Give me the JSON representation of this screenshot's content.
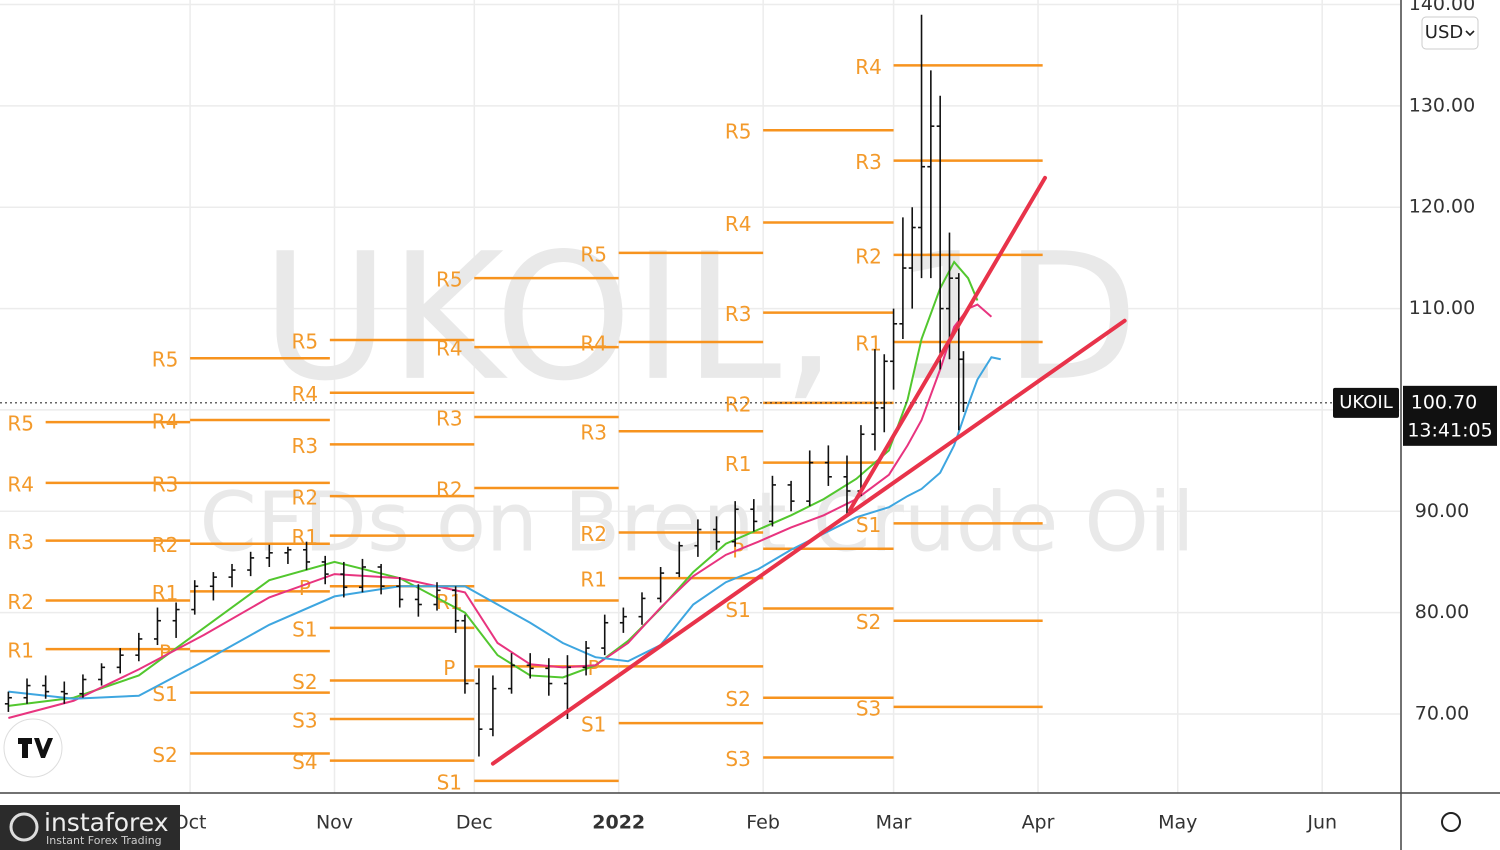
{
  "chart_data": {
    "type": "ohlc",
    "symbol": "UKOIL",
    "watermark_title": "UKOIL, 1D",
    "watermark_subtitle": "CFDs on Brent Crude Oil",
    "currency": "USD",
    "last_price": {
      "value": 100.7,
      "label": "100.70"
    },
    "countdown": "13:41:05",
    "xlim": [
      -40.8,
      259.7
    ],
    "ylim": [
      62.2,
      140.45
    ],
    "xticks": [
      {
        "value": 0,
        "label": "Oct"
      },
      {
        "value": 31,
        "label": "Nov"
      },
      {
        "value": 61,
        "label": "Dec"
      },
      {
        "value": 92,
        "label": "2022"
      },
      {
        "value": 123,
        "label": "Feb"
      },
      {
        "value": 151,
        "label": "Mar"
      },
      {
        "value": 182,
        "label": "Apr"
      },
      {
        "value": 212,
        "label": "May"
      },
      {
        "value": 243,
        "label": "Jun"
      }
    ],
    "yticks": [
      {
        "value": 70,
        "label": "70.00"
      },
      {
        "value": 80,
        "label": "80.00"
      },
      {
        "value": 90,
        "label": "90.00"
      },
      {
        "value": 100,
        "label": "100.00"
      },
      {
        "value": 110,
        "label": "110.00"
      },
      {
        "value": 120,
        "label": "120.00"
      },
      {
        "value": 130,
        "label": "130.00"
      },
      {
        "value": 140,
        "label": "140.00"
      }
    ],
    "grid": true,
    "bar_color": "#111111",
    "x": [
      -39,
      -35,
      -31,
      -27,
      -23,
      -19,
      -15,
      -11,
      -7,
      -3,
      1,
      5,
      9,
      13,
      17,
      21,
      25,
      29,
      33,
      37,
      41,
      45,
      49,
      53,
      57,
      59,
      62,
      65,
      69,
      73,
      77,
      81,
      85,
      89,
      93,
      97,
      101,
      105,
      109,
      113,
      117,
      121,
      125,
      129,
      133,
      137,
      141,
      144,
      147,
      149,
      151,
      153,
      155,
      157,
      159,
      161,
      163,
      165,
      166
    ],
    "open": [
      71.0,
      71.6,
      72.8,
      72.2,
      72.0,
      73.4,
      74.6,
      75.8,
      77.4,
      79.2,
      80.3,
      82.6,
      83.5,
      84.2,
      85.4,
      85.9,
      86.2,
      85.0,
      83.8,
      82.5,
      84.5,
      82.6,
      81.3,
      80.8,
      82.2,
      79.2,
      73.0,
      68.5,
      72.5,
      74.8,
      74.5,
      73.0,
      74.6,
      76.5,
      79.0,
      79.6,
      81.4,
      83.9,
      86.6,
      88.2,
      87.0,
      90.2,
      89.0,
      92.6,
      91.0,
      94.8,
      93.4,
      92.0,
      97.6,
      100.2,
      104.8,
      108.5,
      114.0,
      118.0,
      124.0,
      128.0,
      110.0,
      113.0,
      105.0
    ],
    "high": [
      72.2,
      73.5,
      73.8,
      73.2,
      73.9,
      75.0,
      76.5,
      78.0,
      80.5,
      81.0,
      83.2,
      84.0,
      84.8,
      86.0,
      86.7,
      86.5,
      87.0,
      85.6,
      85.0,
      85.3,
      84.8,
      83.5,
      82.8,
      83.0,
      82.6,
      79.8,
      74.5,
      73.8,
      76.0,
      76.0,
      75.5,
      75.8,
      77.2,
      79.8,
      80.5,
      82.0,
      84.5,
      87.0,
      89.2,
      89.5,
      91.0,
      91.2,
      93.5,
      93.0,
      96.0,
      96.5,
      95.5,
      98.5,
      106.0,
      105.5,
      110.0,
      119.0,
      120.0,
      139.0,
      133.5,
      131.0,
      117.5,
      113.5,
      105.8
    ],
    "low": [
      70.2,
      71.0,
      71.5,
      71.0,
      71.6,
      72.8,
      74.0,
      75.2,
      76.8,
      77.5,
      79.8,
      81.2,
      82.5,
      83.6,
      84.5,
      84.8,
      84.2,
      82.8,
      81.5,
      82.0,
      81.8,
      80.5,
      79.6,
      80.2,
      78.0,
      72.0,
      65.8,
      67.8,
      72.0,
      73.5,
      71.8,
      69.5,
      73.8,
      75.8,
      78.0,
      78.8,
      81.0,
      83.5,
      85.5,
      86.2,
      86.5,
      88.0,
      88.5,
      90.0,
      90.5,
      92.5,
      89.5,
      91.5,
      96.0,
      97.8,
      102.0,
      107.0,
      110.0,
      113.0,
      113.0,
      104.0,
      105.0,
      98.0,
      99.8
    ],
    "close": [
      71.6,
      72.8,
      72.2,
      72.0,
      73.4,
      74.6,
      75.8,
      77.4,
      79.2,
      80.3,
      82.6,
      83.5,
      84.2,
      85.4,
      85.9,
      86.2,
      85.0,
      83.8,
      82.5,
      84.5,
      82.6,
      81.3,
      80.8,
      82.2,
      79.2,
      73.0,
      68.5,
      72.5,
      74.8,
      74.5,
      73.0,
      74.6,
      76.5,
      79.0,
      79.6,
      81.4,
      83.9,
      86.6,
      88.2,
      87.0,
      90.2,
      89.0,
      92.6,
      91.0,
      94.8,
      93.4,
      92.0,
      97.6,
      100.2,
      104.8,
      108.5,
      114.0,
      118.0,
      124.0,
      128.0,
      110.0,
      113.0,
      105.0,
      100.7
    ],
    "moving_averages": {
      "x": [
        -39,
        -25,
        -11,
        3,
        17,
        31,
        45,
        59,
        66,
        73,
        80,
        87,
        94,
        101,
        108,
        115,
        122,
        129,
        136,
        143,
        150,
        154,
        157,
        161,
        164,
        167,
        169,
        172,
        174
      ],
      "series": [
        {
          "color": "#52c72e",
          "values": [
            70.8,
            71.6,
            73.8,
            78.5,
            83.2,
            85.0,
            83.4,
            80.0,
            75.8,
            73.8,
            73.6,
            74.8,
            77.2,
            80.4,
            84.0,
            86.8,
            88.2,
            89.6,
            91.2,
            93.2,
            96.0,
            101.0,
            107.0,
            112.0,
            114.6,
            113.0,
            110.8,
            null,
            null
          ]
        },
        {
          "color": "#e8347f",
          "values": [
            69.6,
            71.3,
            74.4,
            77.8,
            81.5,
            83.8,
            83.4,
            82.0,
            77.0,
            74.9,
            74.6,
            74.8,
            77.0,
            80.5,
            83.6,
            85.7,
            87.0,
            88.4,
            89.6,
            91.2,
            93.6,
            96.5,
            99.0,
            104.0,
            108.2,
            110.0,
            110.4,
            109.2,
            null
          ]
        },
        {
          "color": "#3ea6e0",
          "values": [
            72.2,
            71.5,
            71.8,
            75.2,
            78.8,
            81.6,
            82.6,
            82.6,
            80.8,
            79.0,
            77.0,
            75.6,
            75.2,
            76.8,
            80.8,
            83.0,
            84.3,
            86.2,
            87.8,
            89.4,
            90.4,
            91.5,
            92.2,
            93.8,
            96.5,
            100.5,
            103.0,
            105.2,
            105.0
          ]
        }
      ]
    },
    "trendlines": [
      {
        "color": "#e8334a",
        "x": [
          141.6,
          183.5
        ],
        "y": [
          90.1,
          122.9
        ]
      },
      {
        "color": "#e8334a",
        "x": [
          65,
          200.6
        ],
        "y": [
          65.1,
          108.8
        ]
      }
    ],
    "pivots": {
      "color": "#f7931e",
      "periods": [
        {
          "x": [
            -31,
            0
          ],
          "levels": [
            {
              "label": "R5",
              "value": 98.8
            },
            {
              "label": "R4",
              "value": 92.8
            },
            {
              "label": "R3",
              "value": 87.1
            },
            {
              "label": "R2",
              "value": 81.2
            },
            {
              "label": "R1",
              "value": 76.4
            }
          ]
        },
        {
          "x": [
            0,
            30
          ],
          "levels": [
            {
              "label": "R5",
              "value": 105.1
            },
            {
              "label": "R4",
              "value": 99.0
            },
            {
              "label": "R3",
              "value": 92.8
            },
            {
              "label": "R2",
              "value": 86.8
            },
            {
              "label": "R1",
              "value": 82.1
            },
            {
              "label": "P",
              "value": 76.2
            },
            {
              "label": "S1",
              "value": 72.1
            },
            {
              "label": "S2",
              "value": 66.1
            }
          ]
        },
        {
          "x": [
            30,
            61
          ],
          "levels": [
            {
              "label": "R5",
              "value": 106.9
            },
            {
              "label": "R4",
              "value": 101.7
            },
            {
              "label": "R3",
              "value": 96.6
            },
            {
              "label": "R2",
              "value": 91.5
            },
            {
              "label": "R1",
              "value": 87.6
            },
            {
              "label": "P",
              "value": 82.6
            },
            {
              "label": "S1",
              "value": 78.5
            },
            {
              "label": "S2",
              "value": 73.3
            },
            {
              "label": "S3",
              "value": 69.5
            },
            {
              "label": "S4",
              "value": 65.4
            }
          ]
        },
        {
          "x": [
            61,
            92
          ],
          "levels": [
            {
              "label": "R5",
              "value": 113.0
            },
            {
              "label": "R4",
              "value": 106.2
            },
            {
              "label": "R3",
              "value": 99.3
            },
            {
              "label": "R2",
              "value": 92.3
            },
            {
              "label": "R1",
              "value": 81.2
            },
            {
              "label": "P",
              "value": 74.7
            },
            {
              "label": "S1",
              "value": 63.4
            }
          ]
        },
        {
          "x": [
            92,
            123
          ],
          "levels": [
            {
              "label": "R5",
              "value": 115.5
            },
            {
              "label": "R4",
              "value": 106.7
            },
            {
              "label": "R3",
              "value": 97.9
            },
            {
              "label": "R2",
              "value": 87.9
            },
            {
              "label": "R1",
              "value": 83.4
            },
            {
              "label": "P",
              "value": 74.7
            },
            {
              "label": "S1",
              "value": 69.1
            }
          ]
        },
        {
          "x": [
            123,
            151
          ],
          "levels": [
            {
              "label": "R5",
              "value": 127.6
            },
            {
              "label": "R4",
              "value": 118.5
            },
            {
              "label": "R3",
              "value": 109.6
            },
            {
              "label": "R2",
              "value": 100.7
            },
            {
              "label": "R1",
              "value": 94.8
            },
            {
              "label": "P",
              "value": 86.3
            },
            {
              "label": "S1",
              "value": 80.4
            },
            {
              "label": "S2",
              "value": 71.6
            },
            {
              "label": "S3",
              "value": 65.7
            }
          ]
        },
        {
          "x": [
            151,
            183
          ],
          "levels": [
            {
              "label": "R4",
              "value": 134.0
            },
            {
              "label": "R3",
              "value": 124.6
            },
            {
              "label": "R2",
              "value": 115.3
            },
            {
              "label": "R1",
              "value": 106.7
            },
            {
              "label": "S1",
              "value": 88.8
            },
            {
              "label": "S2",
              "value": 79.2
            },
            {
              "label": "S3",
              "value": 70.7
            }
          ]
        }
      ]
    }
  },
  "branding": {
    "name": "instaforex",
    "tagline": "Instant Forex Trading"
  }
}
